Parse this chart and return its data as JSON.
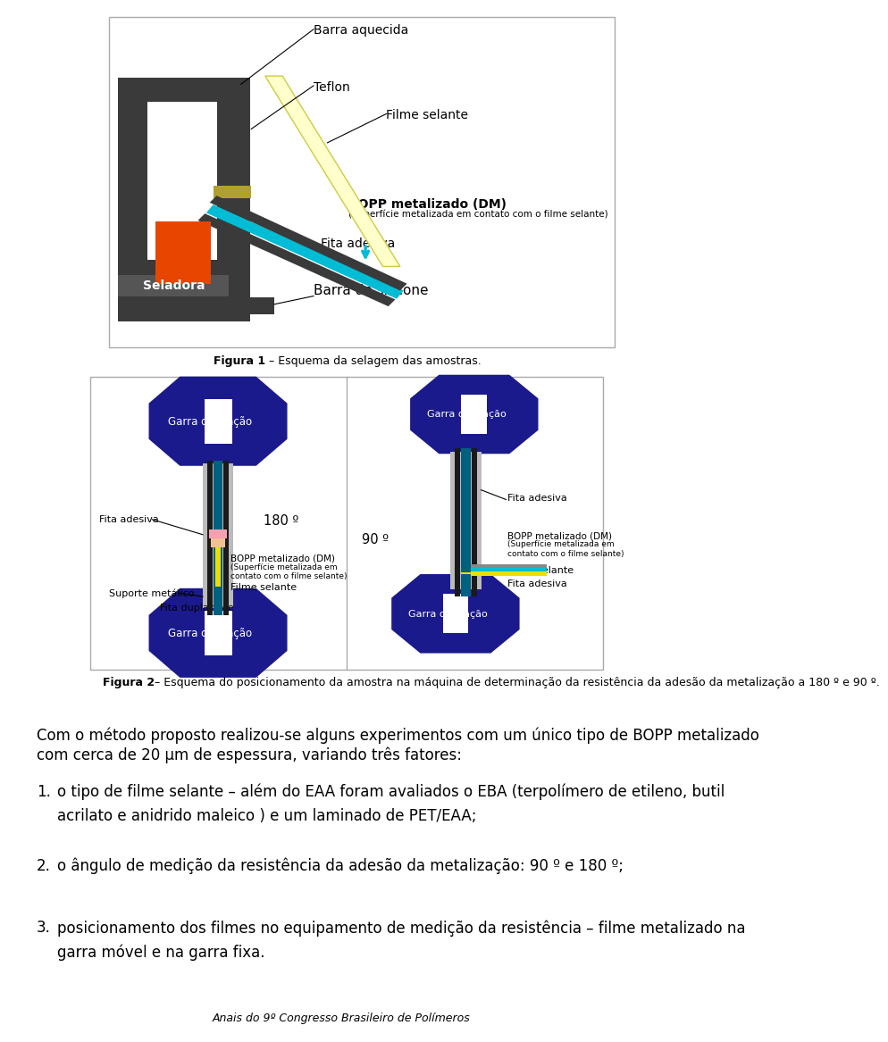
{
  "bg_color": "#ffffff",
  "fig1_caption": "Figura 1 – Esquema da selagem das amostras.",
  "fig2_caption": "Figura 2 – Esquema do posicionamento da amostra na máquina de determinação da resistência da adesão da metalização a 180 º e 90 º.",
  "footer": "Anais do 9º Congresso Brasileiro de Polímeros",
  "paragraph1": "Com o método proposto realizou-se alguns experimentos com um único tipo de BOPP metalizado",
  "paragraph2": "com cerca de 20 μm de espessura, variando três fatores:",
  "item1_line1": "o tipo de filme selante – além do EAA foram avaliados o EBA (terpolímero de etileno, butil",
  "item1_line2": "acrilato e anidrido maleico ) e um laminado de PET/EAA;",
  "item2": "o ângulo de medição da resistência da adesão da metalização: 90 º e 180 º;",
  "item3_line1": "posicionamento dos filmes no equipamento de medição da resistência – filme metalizado na",
  "item3_line2": "garra móvel e na garra fixa.",
  "dark_gray": "#3a3a3a",
  "dark_blue": "#1a1a8c",
  "cyan_color": "#00bcd4",
  "yellow_light": "#ffffcc",
  "yellow_dark": "#cccc44",
  "orange_red": "#e84500",
  "white": "#ffffff",
  "black": "#000000",
  "teal_color": "#006080"
}
